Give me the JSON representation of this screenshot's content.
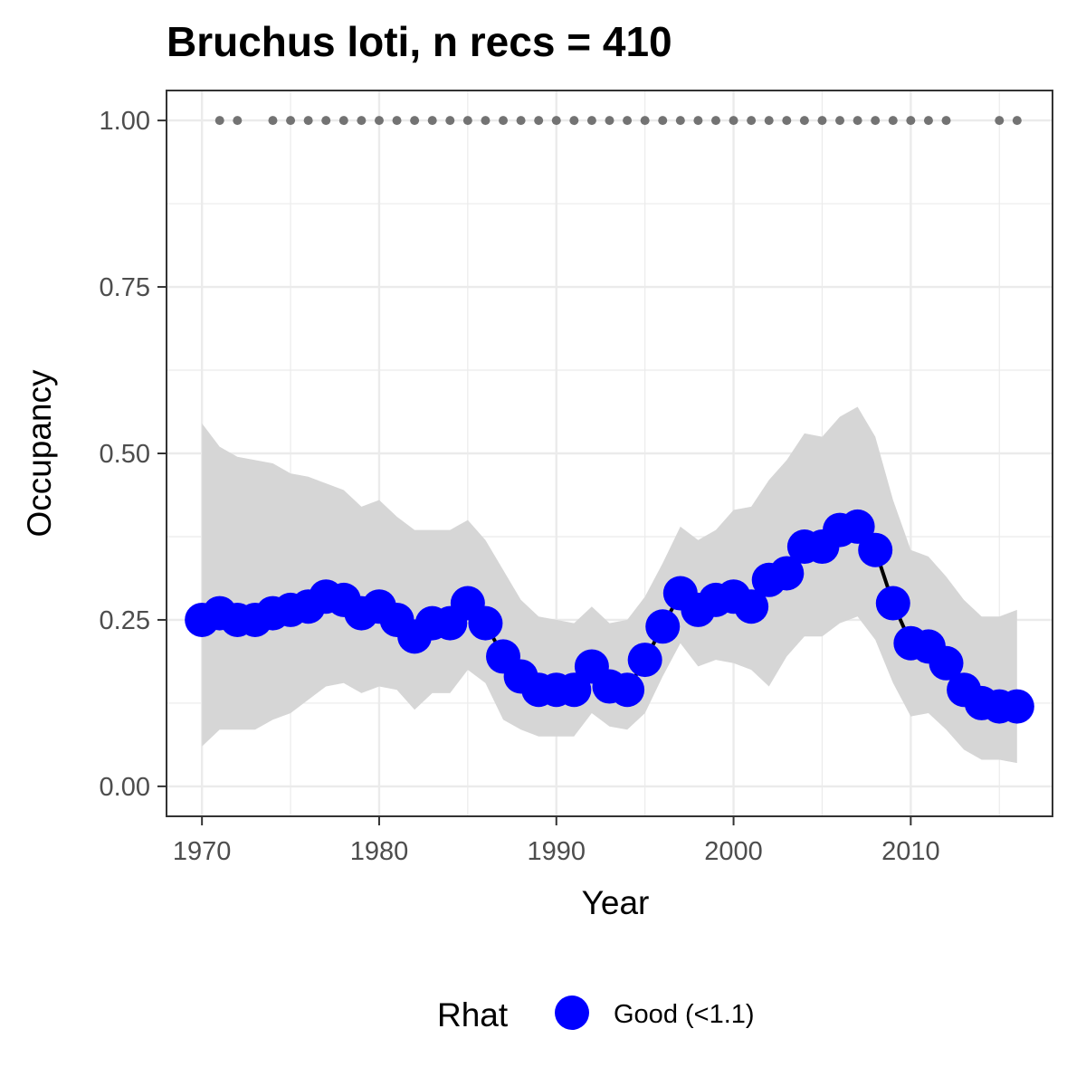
{
  "chart_data": {
    "type": "line",
    "title": "Bruchus loti, n recs = 410",
    "xlabel": "Year",
    "ylabel": "Occupancy",
    "xlim": [
      1968,
      2018
    ],
    "ylim": [
      -0.045,
      1.045
    ],
    "x_ticks": [
      1970,
      1980,
      1990,
      2000,
      2010
    ],
    "x_tick_labels": [
      "1970",
      "1980",
      "1990",
      "2000",
      "2010"
    ],
    "y_ticks": [
      0,
      0.25,
      0.5,
      0.75,
      1.0
    ],
    "y_tick_labels": [
      "0.00",
      "0.25",
      "0.50",
      "0.75",
      "1.00"
    ],
    "grid": true,
    "legend": {
      "title": "Rhat",
      "position": "bottom",
      "entries": [
        {
          "label": "Good (<1.1)",
          "color": "#0000ff"
        }
      ]
    },
    "colors": {
      "points": "#0000ff",
      "line": "#000000",
      "ribbon": "#d6d6d6",
      "records": "#737373"
    },
    "series": [
      {
        "x": [
          1970,
          1971,
          1972,
          1973,
          1974,
          1975,
          1976,
          1977,
          1978,
          1979,
          1980,
          1981,
          1982,
          1983,
          1984,
          1985,
          1986,
          1987,
          1988,
          1989,
          1990,
          1991,
          1992,
          1993,
          1994,
          1995,
          1996,
          1997,
          1998,
          1999,
          2000,
          2001,
          2002,
          2003,
          2004,
          2005,
          2006,
          2007,
          2008,
          2009,
          2010,
          2011,
          2012,
          2013,
          2014,
          2015,
          2016
        ],
        "y": [
          0.25,
          0.26,
          0.25,
          0.25,
          0.26,
          0.265,
          0.27,
          0.285,
          0.28,
          0.26,
          0.27,
          0.25,
          0.225,
          0.245,
          0.245,
          0.275,
          0.245,
          0.195,
          0.165,
          0.145,
          0.145,
          0.145,
          0.18,
          0.15,
          0.145,
          0.19,
          0.24,
          0.29,
          0.265,
          0.28,
          0.285,
          0.27,
          0.31,
          0.32,
          0.36,
          0.36,
          0.385,
          0.39,
          0.355,
          0.275,
          0.215,
          0.21,
          0.185,
          0.145,
          0.125,
          0.12,
          0.12
        ],
        "lower": [
          0.06,
          0.085,
          0.085,
          0.085,
          0.1,
          0.11,
          0.13,
          0.15,
          0.155,
          0.14,
          0.15,
          0.145,
          0.115,
          0.14,
          0.14,
          0.175,
          0.155,
          0.1,
          0.085,
          0.075,
          0.075,
          0.075,
          0.11,
          0.09,
          0.085,
          0.11,
          0.165,
          0.215,
          0.18,
          0.19,
          0.185,
          0.175,
          0.15,
          0.195,
          0.225,
          0.225,
          0.245,
          0.255,
          0.22,
          0.155,
          0.105,
          0.11,
          0.085,
          0.055,
          0.04,
          0.04,
          0.035
        ],
        "upper": [
          0.545,
          0.51,
          0.495,
          0.49,
          0.485,
          0.47,
          0.465,
          0.455,
          0.445,
          0.42,
          0.43,
          0.405,
          0.385,
          0.385,
          0.385,
          0.4,
          0.37,
          0.325,
          0.28,
          0.255,
          0.25,
          0.245,
          0.27,
          0.245,
          0.25,
          0.285,
          0.335,
          0.39,
          0.37,
          0.385,
          0.415,
          0.42,
          0.46,
          0.49,
          0.53,
          0.525,
          0.555,
          0.57,
          0.525,
          0.43,
          0.355,
          0.345,
          0.315,
          0.28,
          0.255,
          0.255,
          0.265
        ]
      }
    ],
    "records": {
      "y": 1.0,
      "x": [
        1971,
        1972,
        1974,
        1975,
        1976,
        1977,
        1978,
        1979,
        1980,
        1981,
        1982,
        1983,
        1984,
        1985,
        1986,
        1987,
        1988,
        1989,
        1990,
        1991,
        1992,
        1993,
        1994,
        1995,
        1996,
        1997,
        1998,
        1999,
        2000,
        2001,
        2002,
        2003,
        2004,
        2005,
        2006,
        2007,
        2008,
        2009,
        2010,
        2011,
        2012,
        2015,
        2016
      ]
    }
  }
}
